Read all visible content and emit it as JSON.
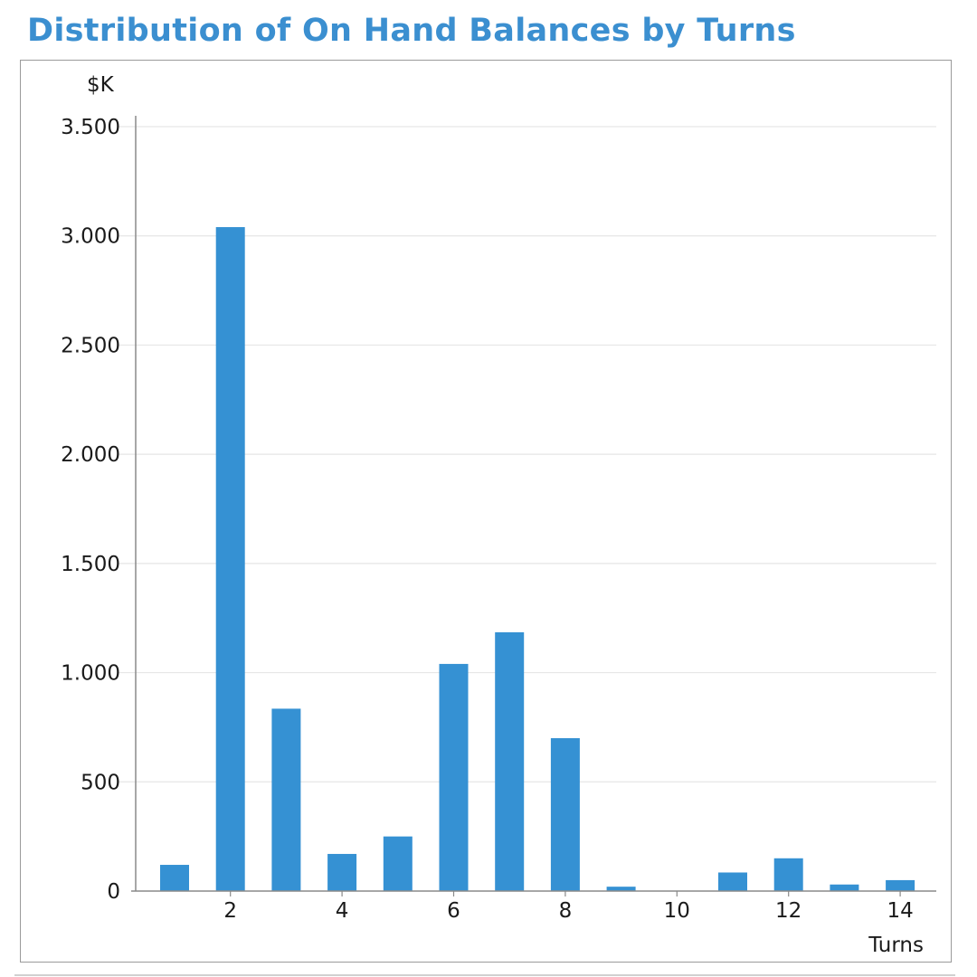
{
  "chart_data": {
    "type": "bar",
    "title": "Distribution of On Hand Balances by Turns",
    "xlabel": "Turns",
    "ylabel": "$K",
    "x": [
      1,
      2,
      3,
      4,
      5,
      6,
      7,
      8,
      9,
      10,
      11,
      12,
      13,
      14
    ],
    "values": [
      120,
      3040,
      835,
      170,
      250,
      1040,
      1185,
      700,
      20,
      0,
      85,
      150,
      30,
      50
    ],
    "xticks": [
      2,
      4,
      6,
      8,
      10,
      12,
      14
    ],
    "xtick_labels": [
      "2",
      "4",
      "6",
      "8",
      "10",
      "12",
      "14"
    ],
    "yticks": [
      0,
      500,
      1000,
      1500,
      2000,
      2500,
      3000,
      3500
    ],
    "ytick_labels": [
      "0",
      "500",
      "1.000",
      "1.500",
      "2.000",
      "2.500",
      "3.000",
      "3.500"
    ],
    "ylim": [
      0,
      3500
    ],
    "xlim": [
      0.5,
      14.5
    ],
    "grid": true,
    "bar_color": "#3591d3",
    "grid_color": "#e6e6e6"
  }
}
